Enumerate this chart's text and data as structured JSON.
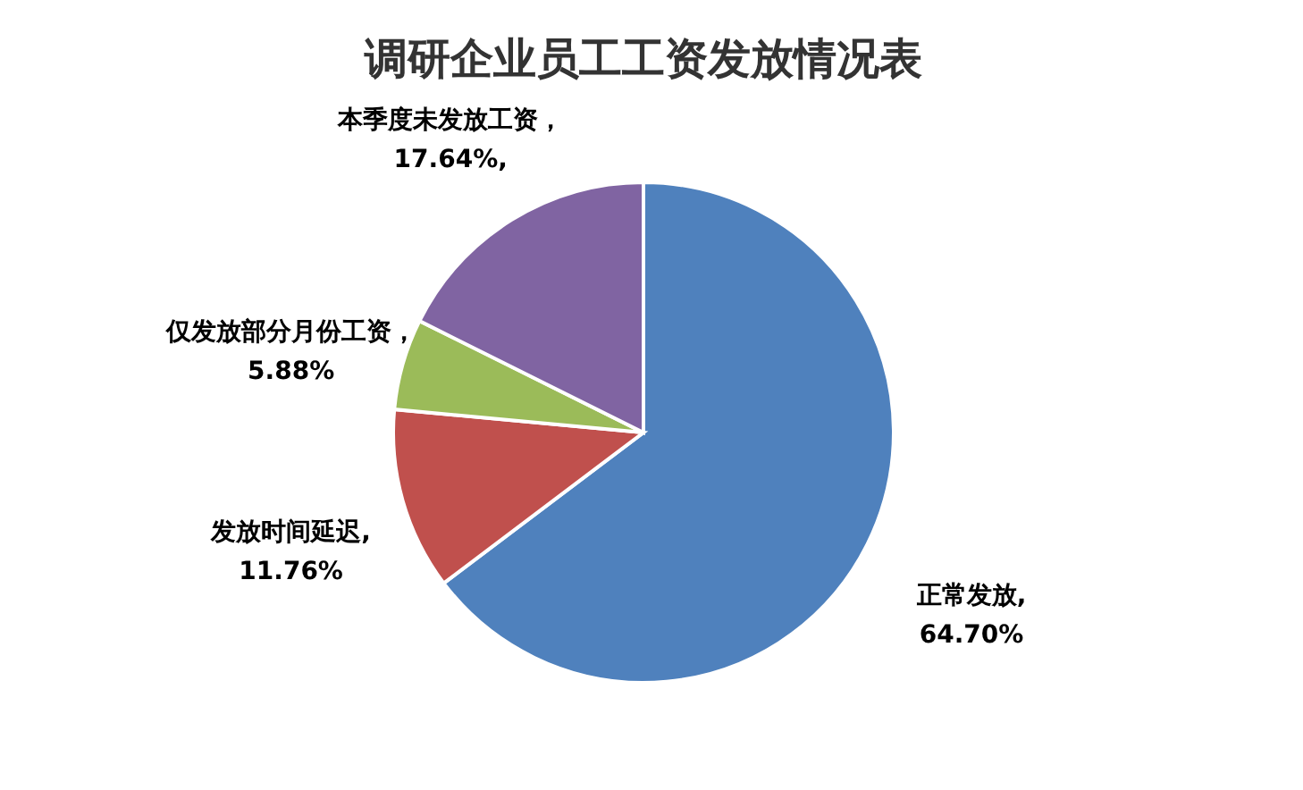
{
  "chart_data": {
    "type": "pie",
    "title": "调研企业员工工资发放情况表",
    "categories": [
      "正常发放",
      "发放时间延迟",
      "仅发放部分月份工资",
      "本季度未发放工资"
    ],
    "values": [
      64.7,
      11.76,
      5.88,
      17.64
    ],
    "colors": [
      "#4f81bd",
      "#c0504d",
      "#9bbb59",
      "#8064a2"
    ],
    "value_labels": [
      ",64.70%",
      ",11.76%",
      "，5.88%",
      "，17.64%,"
    ],
    "legend": false
  }
}
